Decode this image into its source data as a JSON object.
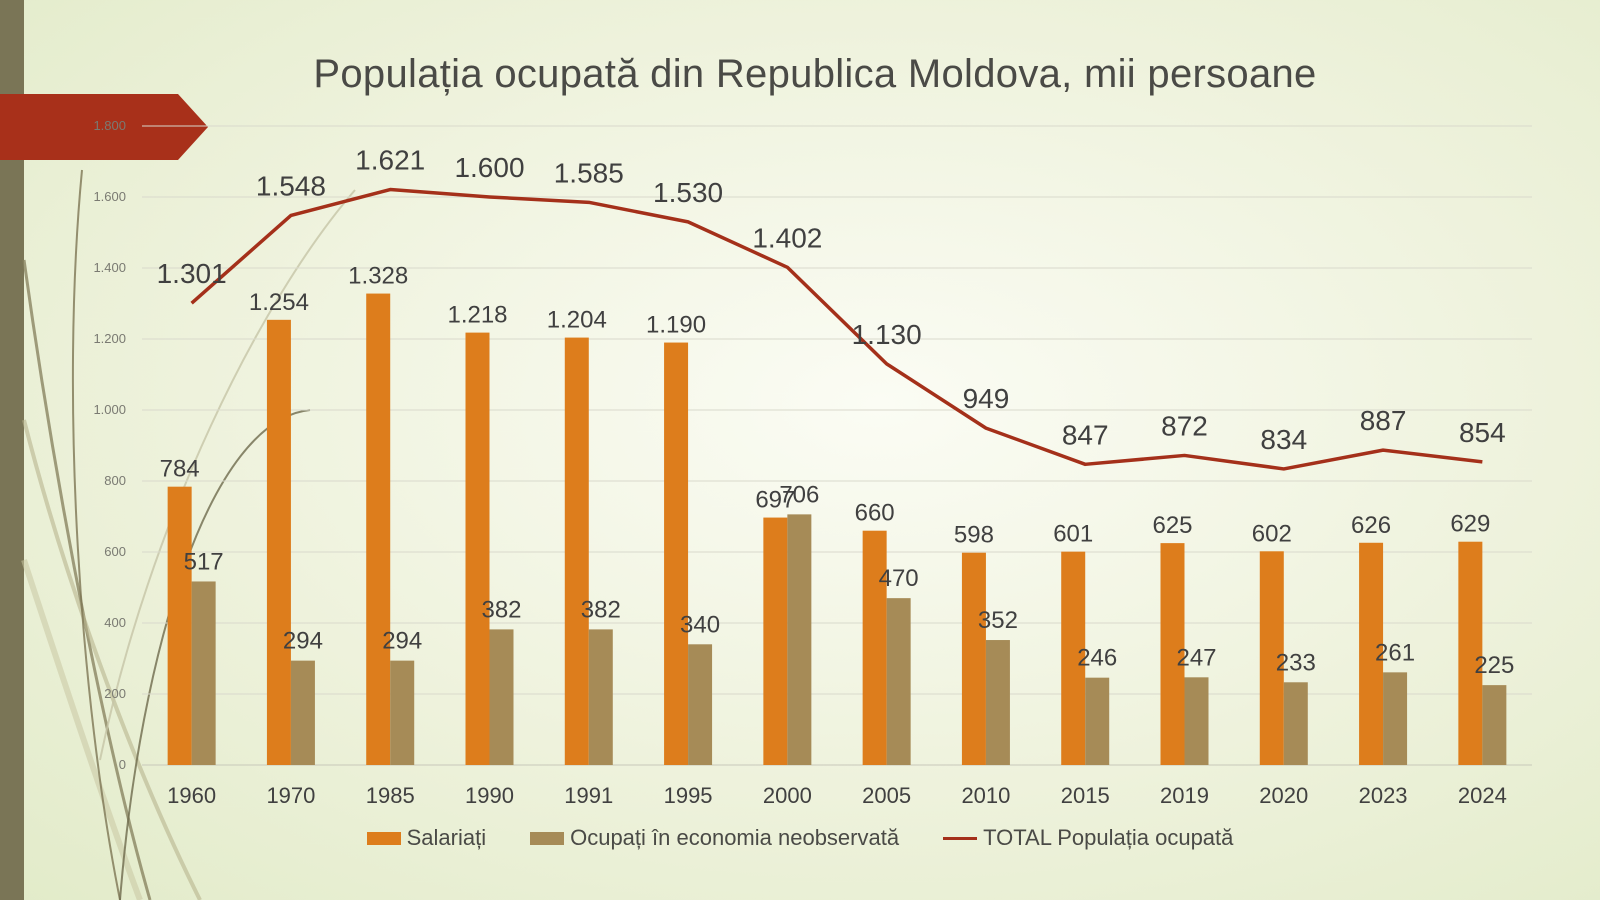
{
  "slide": {
    "title": "Populația ocupată din Republica Moldova, mii persoane"
  },
  "colors": {
    "salariati": "#dd7d1c",
    "neobservata": "#a68b57",
    "total": "#a4301a",
    "grid": "#d9d9cc",
    "text": "#404040",
    "axis_text": "#7a7a72"
  },
  "chart_data": {
    "type": "bar",
    "title": "Populația ocupată din Republica Moldova, mii persoane",
    "categories": [
      "1960",
      "1970",
      "1985",
      "1990",
      "1991",
      "1995",
      "2000",
      "2005",
      "2010",
      "2015",
      "2019",
      "2020",
      "2023",
      "2024"
    ],
    "series": [
      {
        "name": "Salariați",
        "kind": "bar",
        "values": [
          784,
          1254,
          1328,
          1218,
          1204,
          1190,
          697,
          660,
          598,
          601,
          625,
          602,
          626,
          629
        ],
        "labels": [
          "784",
          "1.254",
          "1.328",
          "1.218",
          "1.204",
          "1.190",
          "697",
          "660",
          "598",
          "601",
          "625",
          "602",
          "626",
          "629"
        ]
      },
      {
        "name": "Ocupați în economia neobservată",
        "kind": "bar",
        "values": [
          517,
          294,
          294,
          382,
          382,
          340,
          706,
          470,
          352,
          246,
          247,
          233,
          261,
          225
        ],
        "labels": [
          "517",
          "294",
          "294",
          "382",
          "382",
          "340",
          "706",
          "470",
          "352",
          "246",
          "247",
          "233",
          "261",
          "225"
        ]
      },
      {
        "name": "TOTAL Populația ocupată",
        "kind": "line",
        "values": [
          1301,
          1548,
          1621,
          1600,
          1585,
          1530,
          1402,
          1130,
          949,
          847,
          872,
          834,
          887,
          854
        ],
        "labels": [
          "1.301",
          "1.548",
          "1.621",
          "1.600",
          "1.585",
          "1.530",
          "1.402",
          "1.130",
          "949",
          "847",
          "872",
          "834",
          "887",
          "854"
        ]
      }
    ],
    "ylim": [
      0,
      1800
    ],
    "yticks": [
      0,
      200,
      400,
      600,
      800,
      1000,
      1200,
      1400,
      1600,
      1800
    ],
    "ytick_labels": [
      "0",
      "200",
      "400",
      "600",
      "800",
      "1.000",
      "1.200",
      "1.400",
      "1.600",
      "1.800"
    ],
    "grid": true,
    "legend_position": "bottom"
  }
}
